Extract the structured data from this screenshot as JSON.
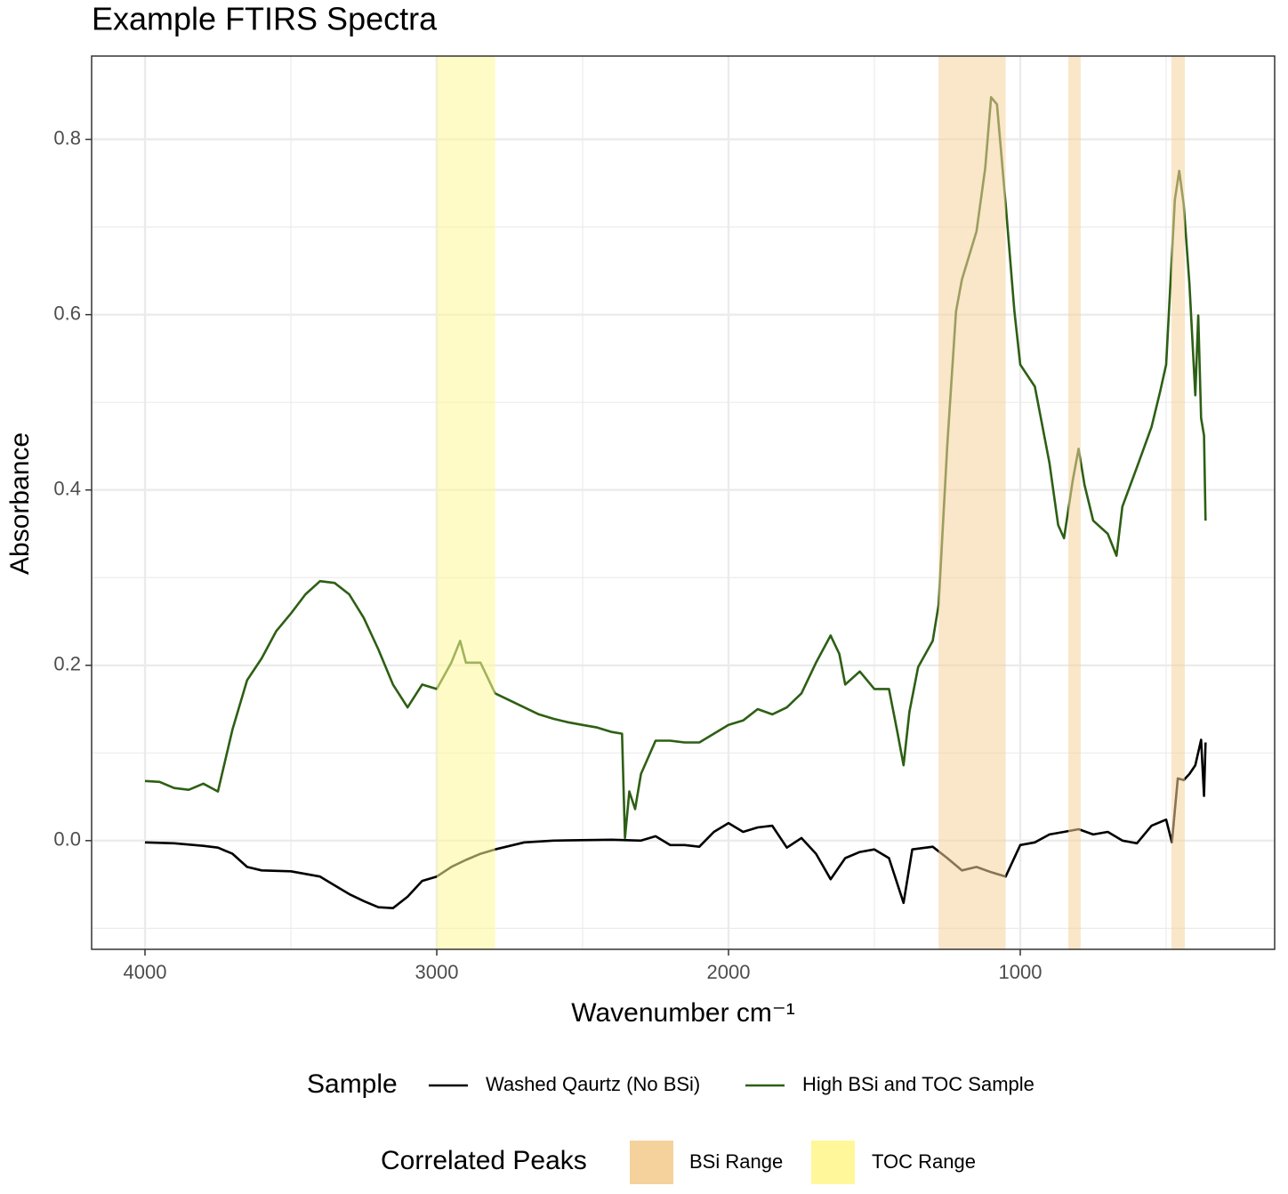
{
  "chart_data": {
    "type": "line",
    "title": "Example FTIRS Spectra",
    "x_label": "Wavenumber cm⁻¹",
    "y_label": "Absorbance",
    "xlim": [
      4183,
      128
    ],
    "ylim": [
      -0.124,
      0.895
    ],
    "xticks": [
      4000,
      3000,
      2000,
      1000
    ],
    "yticks": [
      {
        "value": 0,
        "label": "0.0"
      },
      0.2,
      0.4,
      0.6,
      0.8
    ],
    "grid": true,
    "legend_title": "Sample",
    "series": [
      {
        "name": "Washed Qaurtz (No BSi)",
        "color": "#000000",
        "x": [
          4000,
          3900,
          3800,
          3750,
          3700,
          3650,
          3600,
          3500,
          3400,
          3350,
          3300,
          3250,
          3200,
          3150,
          3100,
          3050,
          3000,
          2950,
          2900,
          2850,
          2800,
          2700,
          2600,
          2400,
          2300,
          2250,
          2200,
          2150,
          2100,
          2050,
          2000,
          1950,
          1900,
          1850,
          1800,
          1750,
          1700,
          1650,
          1600,
          1550,
          1500,
          1450,
          1400,
          1370,
          1300,
          1250,
          1200,
          1150,
          1100,
          1050,
          1000,
          950,
          900,
          850,
          800,
          750,
          700,
          650,
          600,
          550,
          500,
          480,
          460,
          440,
          420,
          400,
          380,
          370,
          365
        ],
        "values": [
          -0.002,
          -0.003,
          -0.006,
          -0.008,
          -0.015,
          -0.03,
          -0.034,
          -0.035,
          -0.041,
          -0.051,
          -0.061,
          -0.069,
          -0.076,
          -0.077,
          -0.064,
          -0.046,
          -0.041,
          -0.03,
          -0.022,
          -0.015,
          -0.01,
          -0.002,
          0.0,
          0.001,
          0.0,
          0.005,
          -0.005,
          -0.005,
          -0.007,
          0.01,
          0.02,
          0.01,
          0.015,
          0.017,
          -0.008,
          0.003,
          -0.015,
          -0.044,
          -0.02,
          -0.013,
          -0.01,
          -0.02,
          -0.071,
          -0.01,
          -0.007,
          -0.02,
          -0.034,
          -0.03,
          -0.036,
          -0.041,
          -0.005,
          -0.002,
          0.007,
          0.01,
          0.013,
          0.007,
          0.01,
          0.0,
          -0.003,
          0.017,
          0.024,
          -0.002,
          0.071,
          0.069,
          0.076,
          0.086,
          0.115,
          0.051,
          0.112
        ]
      },
      {
        "name": "High BSi and TOC Sample",
        "color": "#2d5f14",
        "x": [
          4000,
          3950,
          3900,
          3850,
          3800,
          3750,
          3700,
          3650,
          3600,
          3550,
          3500,
          3450,
          3400,
          3350,
          3300,
          3250,
          3200,
          3150,
          3100,
          3050,
          3000,
          2950,
          2920,
          2900,
          2850,
          2800,
          2750,
          2700,
          2650,
          2600,
          2550,
          2500,
          2450,
          2400,
          2365,
          2355,
          2340,
          2320,
          2300,
          2250,
          2200,
          2150,
          2100,
          2050,
          2000,
          1950,
          1900,
          1850,
          1800,
          1750,
          1700,
          1650,
          1620,
          1600,
          1550,
          1500,
          1450,
          1420,
          1400,
          1380,
          1350,
          1300,
          1280,
          1250,
          1220,
          1200,
          1150,
          1120,
          1100,
          1080,
          1050,
          1020,
          1000,
          950,
          900,
          870,
          850,
          820,
          800,
          780,
          750,
          700,
          670,
          650,
          600,
          550,
          520,
          500,
          470,
          455,
          440,
          420,
          400,
          390,
          380,
          370,
          365
        ],
        "values": [
          0.068,
          0.067,
          0.06,
          0.058,
          0.065,
          0.056,
          0.127,
          0.183,
          0.208,
          0.239,
          0.259,
          0.281,
          0.296,
          0.294,
          0.281,
          0.254,
          0.218,
          0.178,
          0.152,
          0.178,
          0.173,
          0.203,
          0.228,
          0.203,
          0.203,
          0.168,
          0.16,
          0.152,
          0.144,
          0.139,
          0.135,
          0.132,
          0.129,
          0.124,
          0.122,
          0.003,
          0.056,
          0.036,
          0.076,
          0.114,
          0.114,
          0.112,
          0.112,
          0.122,
          0.132,
          0.137,
          0.15,
          0.144,
          0.152,
          0.168,
          0.203,
          0.234,
          0.213,
          0.178,
          0.193,
          0.173,
          0.173,
          0.122,
          0.086,
          0.147,
          0.198,
          0.228,
          0.269,
          0.452,
          0.604,
          0.64,
          0.695,
          0.767,
          0.848,
          0.84,
          0.726,
          0.604,
          0.543,
          0.518,
          0.431,
          0.36,
          0.345,
          0.411,
          0.447,
          0.406,
          0.365,
          0.35,
          0.325,
          0.381,
          0.426,
          0.472,
          0.513,
          0.543,
          0.731,
          0.764,
          0.726,
          0.635,
          0.508,
          0.599,
          0.482,
          0.462,
          0.365
        ]
      }
    ],
    "bands_title": "Correlated Peaks",
    "bands": [
      {
        "name": "BSi Range",
        "color": "#f5d19c",
        "ranges": [
          [
            1280,
            1050
          ],
          [
            835,
            793
          ],
          [
            482,
            436
          ]
        ]
      },
      {
        "name": "TOC Range",
        "color": "#fff799",
        "ranges": [
          [
            3000,
            2800
          ]
        ]
      }
    ]
  }
}
